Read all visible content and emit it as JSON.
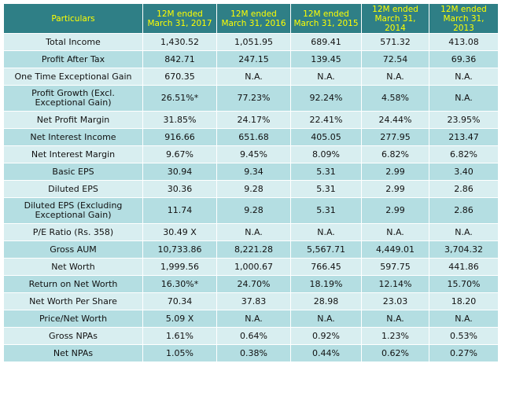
{
  "headers": [
    "Particulars",
    "12M ended\nMarch 31, 2017",
    "12M ended\nMarch 31, 2016",
    "12M ended\nMarch 31, 2015",
    "12M ended\nMarch 31, 2014",
    "12M ended\nMarch 31, 2013"
  ],
  "rows": [
    {
      "label": "Total Income",
      "values": [
        "1,430.52",
        "1,051.95",
        "689.41",
        "571.32",
        "413.08"
      ]
    },
    {
      "label": "Profit After Tax",
      "values": [
        "842.71",
        "247.15",
        "139.45",
        "72.54",
        "69.36"
      ]
    },
    {
      "label": "One Time Exceptional Gain",
      "values": [
        "670.35",
        "N.A.",
        "N.A.",
        "N.A.",
        "N.A."
      ]
    },
    {
      "label": "Profit Growth (Excl. Exceptional Gain)",
      "values": [
        "26.51%*",
        "77.23%",
        "92.24%",
        "4.58%",
        "N.A."
      ]
    },
    {
      "label": "Net Profit Margin",
      "values": [
        "31.85%",
        "24.17%",
        "22.41%",
        "24.44%",
        "23.95%"
      ]
    },
    {
      "label": "Net Interest Income",
      "values": [
        "916.66",
        "651.68",
        "405.05",
        "277.95",
        "213.47"
      ]
    },
    {
      "label": "Net Interest Margin",
      "values": [
        "9.67%",
        "9.45%",
        "8.09%",
        "6.82%",
        "6.82%"
      ]
    },
    {
      "label": "Basic EPS",
      "values": [
        "30.94",
        "9.34",
        "5.31",
        "2.99",
        "3.40"
      ]
    },
    {
      "label": "Diluted EPS",
      "values": [
        "30.36",
        "9.28",
        "5.31",
        "2.99",
        "2.86"
      ]
    },
    {
      "label": "Diluted EPS (Excluding Exceptional Gain)",
      "values": [
        "11.74",
        "9.28",
        "5.31",
        "2.99",
        "2.86"
      ]
    },
    {
      "label": "P/E Ratio (Rs. 358)",
      "values": [
        "30.49 X",
        "N.A.",
        "N.A.",
        "N.A.",
        "N.A."
      ]
    },
    {
      "label": "Gross AUM",
      "values": [
        "10,733.86",
        "8,221.28",
        "5,567.71",
        "4,449.01",
        "3,704.32"
      ]
    },
    {
      "label": "Net Worth",
      "values": [
        "1,999.56",
        "1,000.67",
        "766.45",
        "597.75",
        "441.86"
      ]
    },
    {
      "label": "Return on Net Worth",
      "values": [
        "16.30%*",
        "24.70%",
        "18.19%",
        "12.14%",
        "15.70%"
      ]
    },
    {
      "label": "Net Worth Per Share",
      "values": [
        "70.34",
        "37.83",
        "28.98",
        "23.03",
        "18.20"
      ]
    },
    {
      "label": "Price/Net Worth",
      "values": [
        "5.09 X",
        "N.A.",
        "N.A.",
        "N.A.",
        "N.A."
      ]
    },
    {
      "label": "Gross NPAs",
      "values": [
        "1.61%",
        "0.64%",
        "0.92%",
        "1.23%",
        "0.53%"
      ]
    },
    {
      "label": "Net NPAs",
      "values": [
        "1.05%",
        "0.38%",
        "0.44%",
        "0.62%",
        "0.27%"
      ]
    }
  ]
}
